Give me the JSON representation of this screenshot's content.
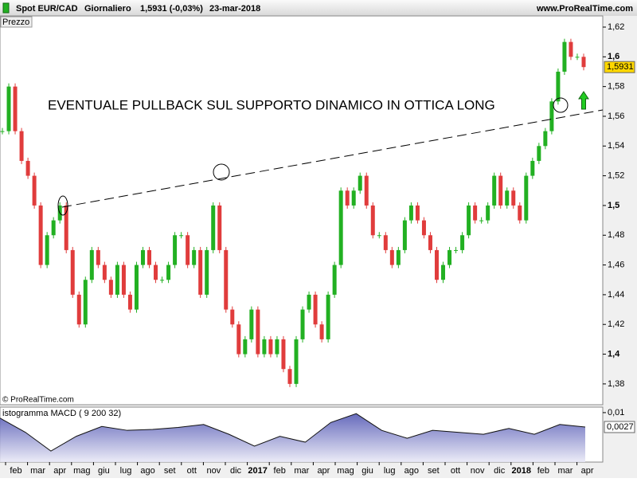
{
  "header": {
    "symbol": "Spot EUR/CAD",
    "period": "Giornaliero",
    "quote": "1,5931 (-0,03%)",
    "date": "23-mar-2018",
    "site": "www.ProRealTime.com",
    "copyright": "© ProRealTime.com"
  },
  "annotation": "EVENTUALE PULLBACK SUL SUPPORTO DINAMICO IN OTTICA LONG",
  "x_axis": {
    "labels": [
      "feb",
      "mar",
      "apr",
      "mag",
      "giu",
      "lug",
      "ago",
      "set",
      "ott",
      "nov",
      "dic",
      "2017",
      "feb",
      "mar",
      "apr",
      "mag",
      "giu",
      "lug",
      "ago",
      "set",
      "ott",
      "nov",
      "dic",
      "2018",
      "feb",
      "mar",
      "apr"
    ]
  },
  "chart_data": [
    {
      "type": "candlestick",
      "title": "Prezzo",
      "values": [
        1.55,
        1.58,
        1.55,
        1.53,
        1.52,
        1.5,
        1.46,
        1.48,
        1.49,
        1.5,
        1.47,
        1.44,
        1.42,
        1.45,
        1.47,
        1.46,
        1.45,
        1.44,
        1.46,
        1.44,
        1.43,
        1.46,
        1.47,
        1.46,
        1.45,
        1.45,
        1.46,
        1.48,
        1.48,
        1.46,
        1.47,
        1.44,
        1.47,
        1.5,
        1.47,
        1.43,
        1.42,
        1.4,
        1.41,
        1.43,
        1.4,
        1.41,
        1.4,
        1.41,
        1.39,
        1.38,
        1.41,
        1.43,
        1.44,
        1.42,
        1.41,
        1.44,
        1.46,
        1.51,
        1.5,
        1.51,
        1.52,
        1.5,
        1.48,
        1.48,
        1.47,
        1.46,
        1.47,
        1.49,
        1.5,
        1.49,
        1.48,
        1.47,
        1.45,
        1.46,
        1.47,
        1.47,
        1.48,
        1.5,
        1.49,
        1.49,
        1.5,
        1.52,
        1.5,
        1.51,
        1.5,
        1.49,
        1.52,
        1.53,
        1.54,
        1.55,
        1.57,
        1.59,
        1.61,
        1.6,
        1.6,
        1.5931
      ],
      "up_color": "#22b022",
      "down_color": "#e03c3c",
      "last_value": 1.5931,
      "last_value_label": "1,5931",
      "ylim": [
        1.366,
        1.6275
      ],
      "yticks": [
        {
          "value": 1.38,
          "label": "1,38"
        },
        {
          "value": 1.4,
          "label": "1,4"
        },
        {
          "value": 1.42,
          "label": "1,42"
        },
        {
          "value": 1.44,
          "label": "1,44"
        },
        {
          "value": 1.46,
          "label": "1,46"
        },
        {
          "value": 1.48,
          "label": "1,48"
        },
        {
          "value": 1.5,
          "label": "1,5"
        },
        {
          "value": 1.52,
          "label": "1,52"
        },
        {
          "value": 1.54,
          "label": "1,54"
        },
        {
          "value": 1.56,
          "label": "1,56"
        },
        {
          "value": 1.58,
          "label": "1,58"
        },
        {
          "value": 1.6,
          "label": "1,6"
        },
        {
          "value": 1.62,
          "label": "1,62"
        }
      ]
    },
    {
      "type": "area",
      "title": "istogramma MACD ( 9 200 32)",
      "values": [
        0.0072,
        0.0,
        -0.0095,
        -0.002,
        0.003,
        0.001,
        0.0015,
        0.0025,
        0.004,
        -0.001,
        -0.007,
        -0.002,
        -0.005,
        0.005,
        0.0095,
        0.001,
        -0.003,
        0.001,
        0.0,
        -0.001,
        0.002,
        -0.001,
        0.004,
        0.0027
      ],
      "color": "#5a5fb8",
      "last_value": 0.0027,
      "last_value_label": "0,0027",
      "ylim": [
        -0.0151,
        0.0128
      ],
      "yticks": [
        {
          "value": 0.01,
          "label": "0,01"
        }
      ]
    }
  ]
}
